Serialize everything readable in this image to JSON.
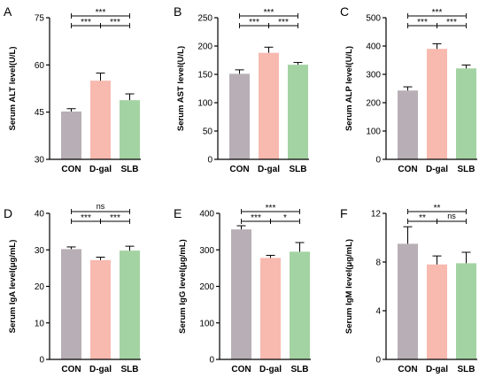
{
  "colors": {
    "CON": "#b7afb5",
    "D-gal": "#f8b9af",
    "SLB": "#a4d3a3"
  },
  "chart_data": [
    {
      "panel": "A",
      "type": "bar",
      "ylabel": "Serum ALT level(U/L)",
      "categories": [
        "CON",
        "D-gal",
        "SLB"
      ],
      "values": [
        45.2,
        55.0,
        48.8
      ],
      "errors": [
        0.9,
        2.4,
        2.0
      ],
      "ylim": [
        30,
        75
      ],
      "yticks": [
        "30",
        "45",
        "60",
        "75"
      ],
      "ytick_values": [
        30,
        45,
        60,
        75
      ],
      "significance": [
        {
          "from": 0,
          "to": 2,
          "label": "***",
          "level": 2
        },
        {
          "from": 0,
          "to": 1,
          "label": "***",
          "level": 1
        },
        {
          "from": 1,
          "to": 2,
          "label": "***",
          "level": 1
        }
      ]
    },
    {
      "panel": "B",
      "type": "bar",
      "ylabel": "Serum AST level(U/L)",
      "categories": [
        "CON",
        "D-gal",
        "SLB"
      ],
      "values": [
        151,
        188,
        167
      ],
      "errors": [
        7,
        10,
        4
      ],
      "ylim": [
        0,
        250
      ],
      "yticks": [
        "0",
        "50",
        "100",
        "150",
        "200",
        "250"
      ],
      "ytick_values": [
        0,
        50,
        100,
        150,
        200,
        250
      ],
      "significance": [
        {
          "from": 0,
          "to": 2,
          "label": "***",
          "level": 2
        },
        {
          "from": 0,
          "to": 1,
          "label": "***",
          "level": 1
        },
        {
          "from": 1,
          "to": 2,
          "label": "***",
          "level": 1
        }
      ]
    },
    {
      "panel": "C",
      "type": "bar",
      "ylabel": "Serum ALP level(U/L)",
      "categories": [
        "CON",
        "D-gal",
        "SLB"
      ],
      "values": [
        243,
        390,
        321
      ],
      "errors": [
        13,
        18,
        12
      ],
      "ylim": [
        0,
        500
      ],
      "yticks": [
        "0",
        "100",
        "200",
        "300",
        "400",
        "500"
      ],
      "ytick_values": [
        0,
        100,
        200,
        300,
        400,
        500
      ],
      "significance": [
        {
          "from": 0,
          "to": 2,
          "label": "***",
          "level": 2
        },
        {
          "from": 0,
          "to": 1,
          "label": "***",
          "level": 1
        },
        {
          "from": 1,
          "to": 2,
          "label": "***",
          "level": 1
        }
      ]
    },
    {
      "panel": "D",
      "type": "bar",
      "ylabel": "Serum IgA level(μg/mL)",
      "categories": [
        "CON",
        "D-gal",
        "SLB"
      ],
      "values": [
        30.2,
        27.2,
        29.8
      ],
      "errors": [
        0.6,
        0.8,
        1.2
      ],
      "ylim": [
        0,
        40
      ],
      "yticks": [
        "0",
        "10",
        "20",
        "30",
        "40"
      ],
      "ytick_values": [
        0,
        10,
        20,
        30,
        40
      ],
      "significance": [
        {
          "from": 0,
          "to": 2,
          "label": "ns",
          "level": 2
        },
        {
          "from": 0,
          "to": 1,
          "label": "***",
          "level": 1
        },
        {
          "from": 1,
          "to": 2,
          "label": "***",
          "level": 1
        }
      ]
    },
    {
      "panel": "E",
      "type": "bar",
      "ylabel": "Serum IgG level(μg/mL)",
      "categories": [
        "CON",
        "D-gal",
        "SLB"
      ],
      "values": [
        356,
        278,
        295
      ],
      "errors": [
        10,
        7,
        25
      ],
      "ylim": [
        0,
        400
      ],
      "yticks": [
        "0",
        "100",
        "200",
        "300",
        "400"
      ],
      "ytick_values": [
        0,
        100,
        200,
        300,
        400
      ],
      "significance": [
        {
          "from": 0,
          "to": 2,
          "label": "***",
          "level": 2
        },
        {
          "from": 0,
          "to": 1,
          "label": "***",
          "level": 1
        },
        {
          "from": 1,
          "to": 2,
          "label": "*",
          "level": 1
        }
      ]
    },
    {
      "panel": "F",
      "type": "bar",
      "ylabel": "Serum IgM level(μg/mL)",
      "categories": [
        "CON",
        "D-gal",
        "SLB"
      ],
      "values": [
        9.5,
        7.8,
        7.9
      ],
      "errors": [
        1.4,
        0.7,
        0.9
      ],
      "ylim": [
        0,
        12
      ],
      "yticks": [
        "0",
        "4",
        "8",
        "12"
      ],
      "ytick_values": [
        0,
        4,
        8,
        12
      ],
      "significance": [
        {
          "from": 0,
          "to": 2,
          "label": "**",
          "level": 2
        },
        {
          "from": 0,
          "to": 1,
          "label": "**",
          "level": 1
        },
        {
          "from": 1,
          "to": 2,
          "label": "ns",
          "level": 1
        }
      ]
    }
  ]
}
